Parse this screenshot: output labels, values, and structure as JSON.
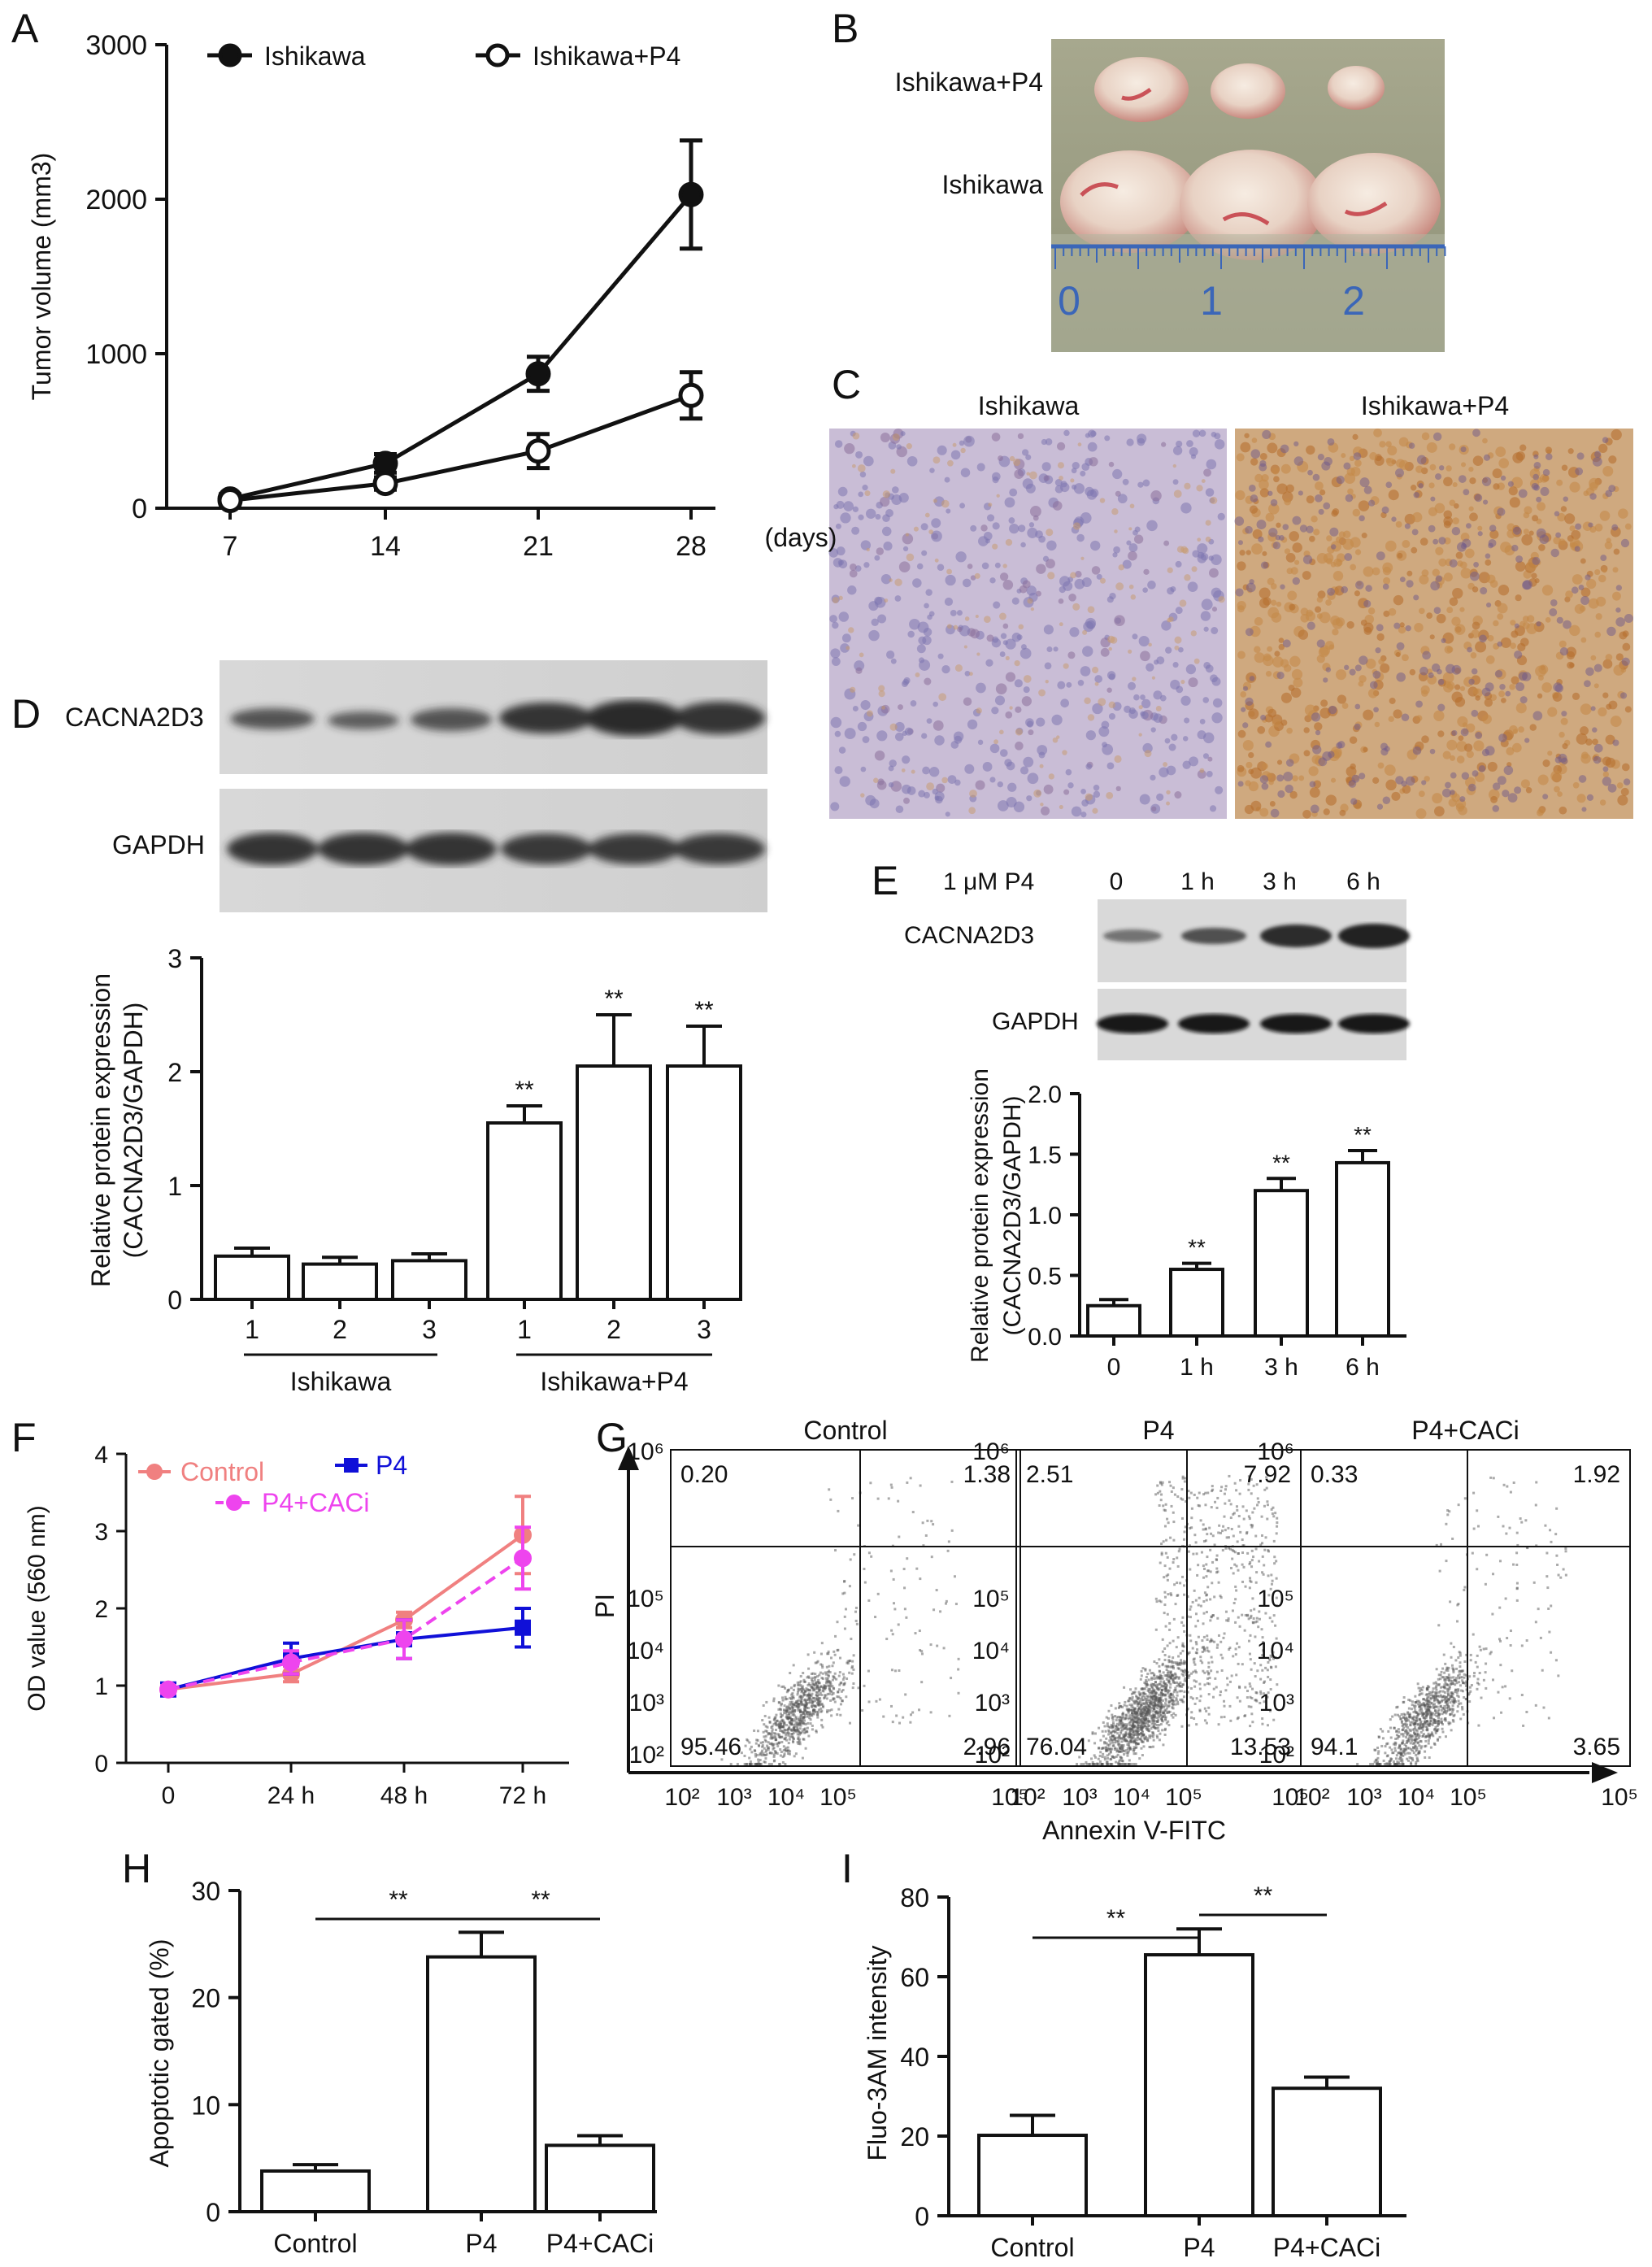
{
  "panels": [
    "A",
    "B",
    "C",
    "D",
    "E",
    "F",
    "G",
    "H",
    "I"
  ],
  "photo_labels": {
    "b_top": "Ishikawa+P4",
    "b_bottom": "Ishikawa",
    "ruler_marks": [
      "0",
      "1",
      "2"
    ],
    "c_left": "Ishikawa",
    "c_right": "Ishikawa+P4"
  },
  "blot_labels": {
    "d_cacna": "CACNA2D3",
    "d_gapdh": "GAPDH",
    "e_treat": "1 μM P4",
    "e_times": [
      "0",
      "1 h",
      "3 h",
      "6 h"
    ],
    "e_cacna": "CACNA2D3",
    "e_gapdh": "GAPDH"
  },
  "colors": {
    "control": "#f08080",
    "p4": "#1010d8",
    "p4_caci": "#ee44ee",
    "axis": "#111111"
  },
  "chart_data": [
    {
      "panel": "A",
      "type": "line",
      "x": [
        7,
        14,
        21,
        28
      ],
      "xticks": [
        "7",
        "14",
        "21",
        "28"
      ],
      "x_unit": "(days)",
      "ylabel": "Tumor volume (mm3)",
      "ylim": [
        0,
        3000
      ],
      "yticks": [
        0,
        1000,
        2000,
        3000
      ],
      "legend": "top",
      "series": [
        {
          "name": "Ishikawa",
          "marker": "filled-circle",
          "values": [
            60,
            290,
            870,
            2030
          ],
          "err": [
            30,
            60,
            110,
            350
          ]
        },
        {
          "name": "Ishikawa+P4",
          "marker": "open-circle",
          "values": [
            50,
            160,
            370,
            730
          ],
          "err": [
            25,
            40,
            110,
            150
          ]
        }
      ]
    },
    {
      "panel": "D",
      "type": "bar",
      "categories": [
        "1",
        "2",
        "3",
        "1",
        "2",
        "3"
      ],
      "groups": [
        {
          "label": "Ishikawa",
          "span": [
            0,
            2
          ]
        },
        {
          "label": "Ishikawa+P4",
          "span": [
            3,
            5
          ]
        }
      ],
      "values": [
        0.38,
        0.31,
        0.34,
        1.55,
        2.05,
        2.05
      ],
      "err": [
        0.07,
        0.06,
        0.06,
        0.15,
        0.45,
        0.35
      ],
      "annotations": [
        "",
        "",
        "",
        "**",
        "**",
        "**"
      ],
      "ylabel": "Relative protein expression (CACNA2D3/GAPDH)",
      "ylim": [
        0,
        3
      ],
      "yticks": [
        0,
        1,
        2,
        3
      ]
    },
    {
      "panel": "E",
      "type": "bar",
      "categories": [
        "0",
        "1 h",
        "3 h",
        "6 h"
      ],
      "values": [
        0.25,
        0.55,
        1.2,
        1.43
      ],
      "err": [
        0.05,
        0.05,
        0.1,
        0.1
      ],
      "annotations": [
        "",
        "**",
        "**",
        "**"
      ],
      "ylabel": "Relative protein expression (CACNA2D3/GAPDH)",
      "ylim": [
        0,
        2.0
      ],
      "yticks": [
        "0.0",
        "0.5",
        "1.0",
        "1.5",
        "2.0"
      ]
    },
    {
      "panel": "F",
      "type": "line",
      "categories": [
        "0",
        "24 h",
        "48 h",
        "72 h"
      ],
      "ylabel": "OD value (560 nm)",
      "ylim": [
        0,
        4
      ],
      "yticks": [
        0,
        1,
        2,
        3,
        4
      ],
      "legend": "top-left",
      "series": [
        {
          "name": "Control",
          "marker": "circle",
          "dash": false,
          "values": [
            0.95,
            1.15,
            1.85,
            2.95
          ],
          "err": [
            0.05,
            0.1,
            0.1,
            0.5
          ]
        },
        {
          "name": "P4",
          "marker": "square",
          "dash": false,
          "values": [
            0.95,
            1.35,
            1.6,
            1.75
          ],
          "err": [
            0.05,
            0.2,
            0.25,
            0.25
          ]
        },
        {
          "name": "P4+CACi",
          "marker": "circle",
          "dash": true,
          "values": [
            0.95,
            1.3,
            1.6,
            2.65
          ],
          "err": [
            0.05,
            0.15,
            0.25,
            0.4
          ]
        }
      ]
    },
    {
      "panel": "G",
      "type": "scatter",
      "xlabel": "Annexin V-FITC",
      "ylabel": "PI",
      "axis_ticks": [
        "10²",
        "10³",
        "10⁴",
        "10⁵"
      ],
      "x_max_tick": "10⁵",
      "y_max_tick": "10⁶",
      "log_scale": true,
      "plots": [
        {
          "title": "Control",
          "quadrants": [
            "0.20",
            "1.38",
            "95.46",
            "2.96"
          ]
        },
        {
          "title": "P4",
          "quadrants": [
            "2.51",
            "7.92",
            "76.04",
            "13.53"
          ]
        },
        {
          "title": "P4+CACi",
          "quadrants": [
            "0.33",
            "1.92",
            "94.1",
            "3.65"
          ]
        }
      ]
    },
    {
      "panel": "H",
      "type": "bar",
      "categories": [
        "Control",
        "P4",
        "P4+CACi"
      ],
      "values": [
        3.8,
        23.8,
        6.2
      ],
      "err": [
        0.6,
        2.3,
        0.9
      ],
      "ylabel": "Apoptotic gated (%)",
      "ylim": [
        0,
        30
      ],
      "yticks": [
        0,
        10,
        20,
        30
      ],
      "brackets": [
        {
          "from": 0,
          "to": 1,
          "label": "**"
        },
        {
          "from": 1,
          "to": 2,
          "label": "**"
        }
      ]
    },
    {
      "panel": "I",
      "type": "bar",
      "categories": [
        "Control",
        "P4",
        "P4+CACi"
      ],
      "values": [
        20.2,
        65.5,
        32.0
      ],
      "err": [
        5.0,
        6.5,
        2.8
      ],
      "ylabel": "Fluo-3AM intensity",
      "ylim": [
        0,
        80
      ],
      "yticks": [
        0,
        20,
        40,
        60,
        80
      ],
      "brackets": [
        {
          "from": 0,
          "to": 1,
          "label": "**"
        },
        {
          "from": 1,
          "to": 2,
          "label": "**"
        }
      ]
    }
  ]
}
